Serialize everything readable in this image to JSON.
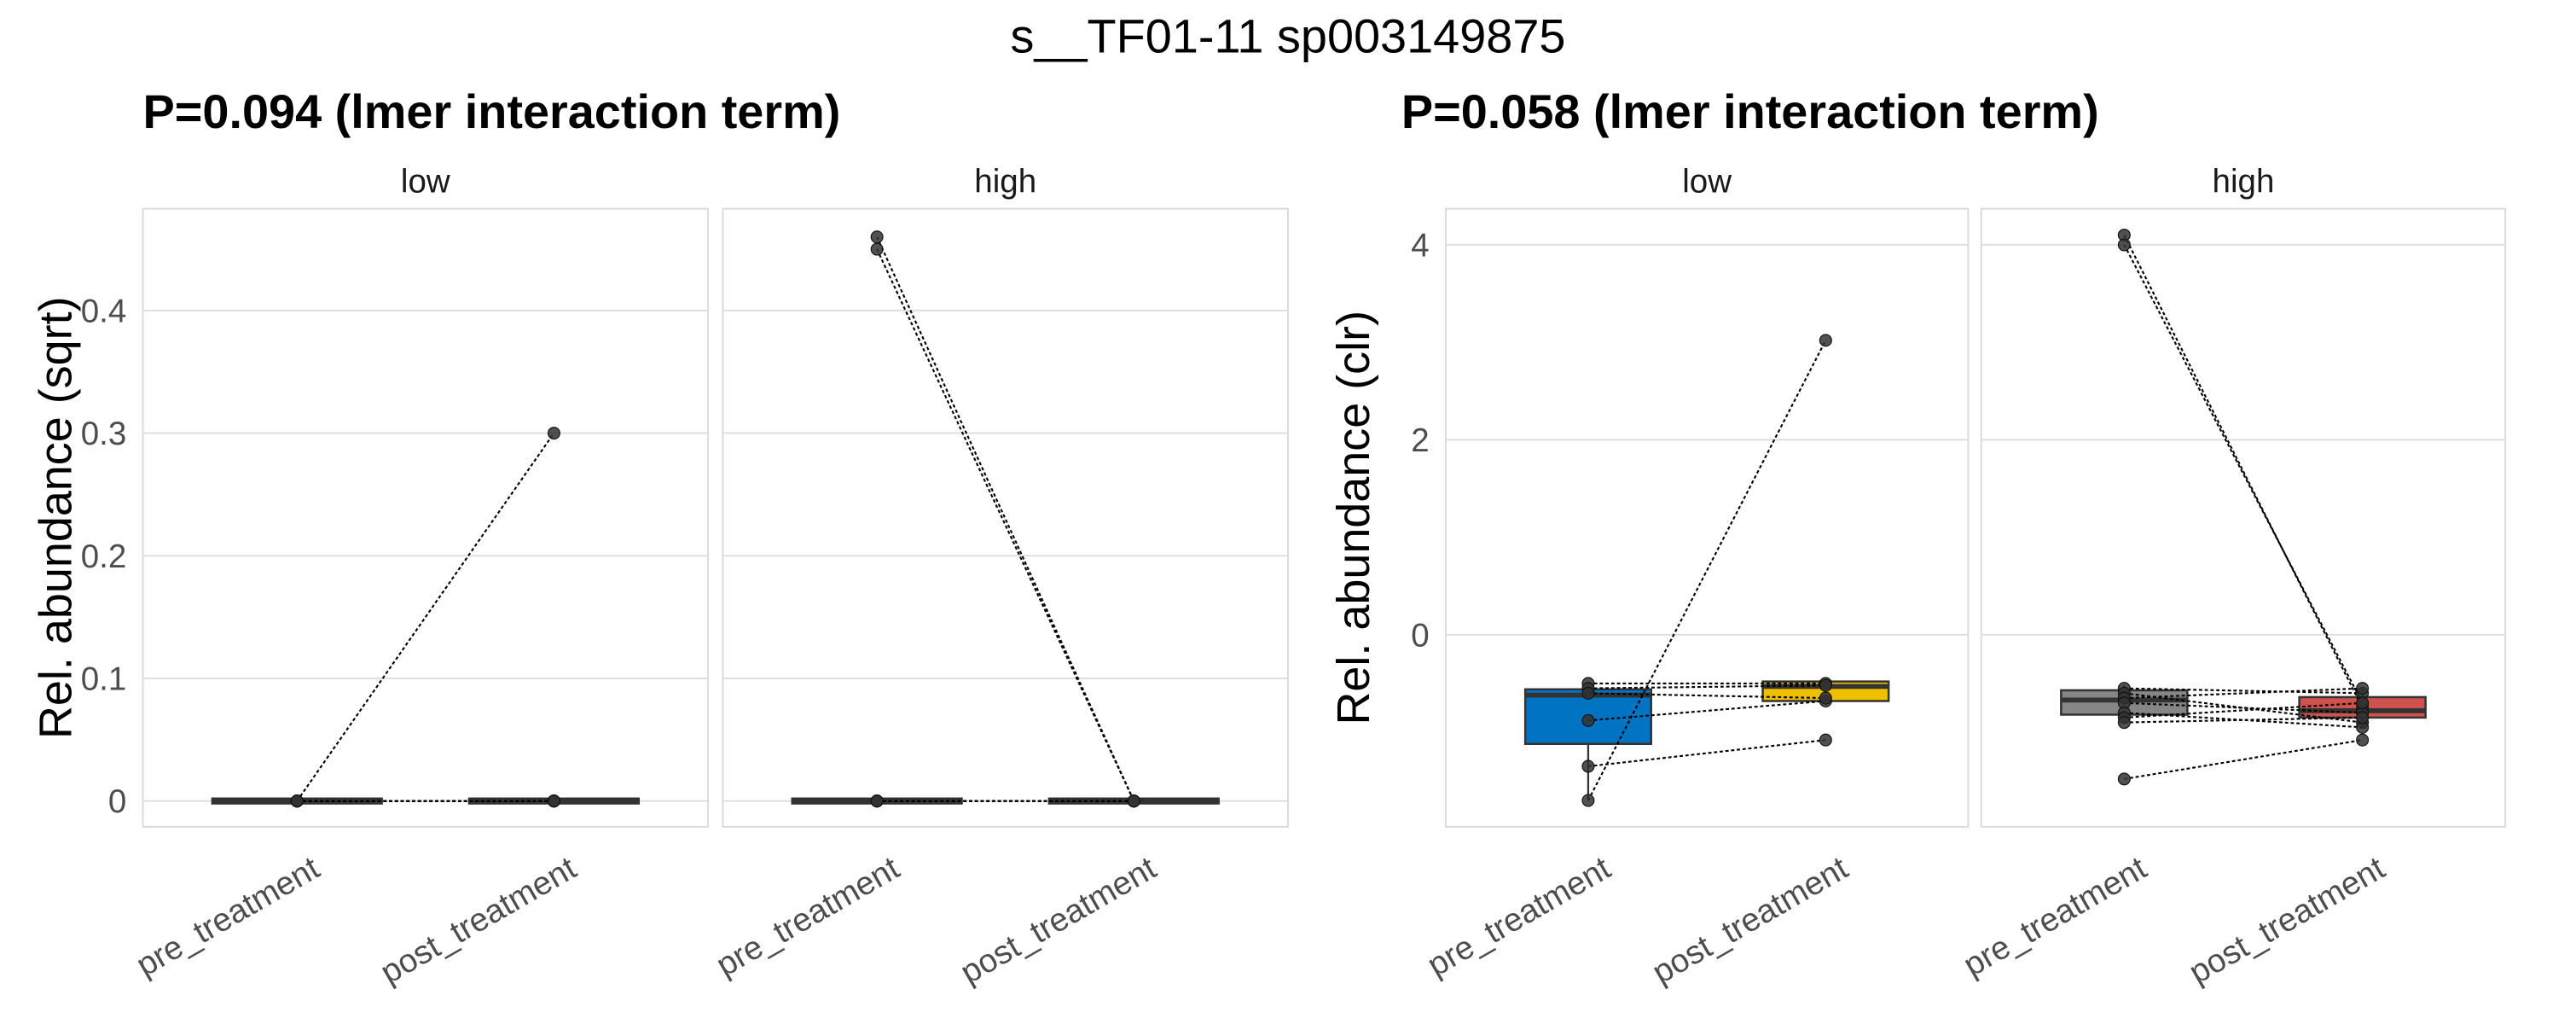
{
  "suptitle": "s__TF01-11 sp003149875",
  "colors": {
    "low_pre": "#0073C2",
    "low_post": "#EFC000",
    "high_pre": "#868686",
    "high_post": "#CD534C",
    "grid": "#DEDEDE",
    "point": "#333333"
  },
  "chart_data": [
    {
      "type": "box",
      "title": "P=0.094 (lmer interaction term)",
      "ylabel": "Rel. abundance (sqrt)",
      "ylim": [
        -0.021,
        0.483
      ],
      "yticks": [
        0,
        0.1,
        0.2,
        0.3,
        0.4
      ],
      "ytick_labels": [
        "0",
        "0.1",
        "0.2",
        "0.3",
        "0.4"
      ],
      "categories": [
        "pre_treatment",
        "post_treatment"
      ],
      "box_width": 0.66,
      "facets": [
        {
          "name": "low",
          "boxes": [
            {
              "q1": 0,
              "median": 0,
              "q3": 0,
              "lo": 0,
              "hi": 0,
              "color": "#333333"
            },
            {
              "q1": 0,
              "median": 0,
              "q3": 0,
              "lo": 0,
              "hi": 0,
              "color": "#333333"
            }
          ],
          "pairs": [
            [
              0,
              0.3
            ],
            [
              0,
              0
            ],
            [
              0,
              0
            ],
            [
              0,
              0
            ],
            [
              0,
              0
            ],
            [
              0,
              0
            ]
          ]
        },
        {
          "name": "high",
          "boxes": [
            {
              "q1": 0,
              "median": 0,
              "q3": 0,
              "lo": 0,
              "hi": 0,
              "color": "#333333"
            },
            {
              "q1": 0,
              "median": 0,
              "q3": 0,
              "lo": 0,
              "hi": 0,
              "color": "#333333"
            }
          ],
          "pairs": [
            [
              0.46,
              0
            ],
            [
              0.45,
              0
            ],
            [
              0,
              0
            ],
            [
              0,
              0
            ],
            [
              0,
              0
            ],
            [
              0,
              0
            ]
          ]
        }
      ]
    },
    {
      "type": "box",
      "title": "P=0.058 (lmer interaction term)",
      "ylabel": "Rel. abundance (clr)",
      "ylim": [
        -1.97,
        4.37
      ],
      "yticks": [
        0,
        2,
        4
      ],
      "ytick_labels": [
        "0",
        "2",
        "4"
      ],
      "categories": [
        "pre_treatment",
        "post_treatment"
      ],
      "box_width": 0.53,
      "facets": [
        {
          "name": "low",
          "boxes": [
            {
              "q1": -1.12,
              "median": -0.62,
              "q3": -0.56,
              "lo": -1.7,
              "hi": -0.5,
              "color": "#0073C2"
            },
            {
              "q1": -0.68,
              "median": -0.53,
              "q3": -0.48,
              "lo": -0.68,
              "hi": -0.48,
              "color": "#EFC000"
            }
          ],
          "pairs": [
            [
              -1.7,
              3.02
            ],
            [
              -1.35,
              -1.08
            ],
            [
              -0.88,
              -0.68
            ],
            [
              -0.5,
              -0.5
            ],
            [
              -0.55,
              -0.52
            ],
            [
              -0.6,
              -0.65
            ]
          ]
        },
        {
          "name": "high",
          "boxes": [
            {
              "q1": -0.82,
              "median": -0.67,
              "q3": -0.57,
              "lo": -0.9,
              "hi": -0.52,
              "color": "#868686"
            },
            {
              "q1": -0.85,
              "median": -0.78,
              "q3": -0.64,
              "lo": -0.95,
              "hi": -0.55,
              "color": "#CD534C"
            }
          ],
          "pairs": [
            [
              4.1,
              -0.75
            ],
            [
              4.0,
              -0.7
            ],
            [
              -1.48,
              -1.08
            ],
            [
              -0.55,
              -0.6
            ],
            [
              -0.6,
              -0.9
            ],
            [
              -0.65,
              -0.55
            ],
            [
              -0.7,
              -0.8
            ],
            [
              -0.8,
              -0.95
            ],
            [
              -0.85,
              -0.7
            ],
            [
              -0.9,
              -0.85
            ]
          ]
        }
      ]
    }
  ]
}
